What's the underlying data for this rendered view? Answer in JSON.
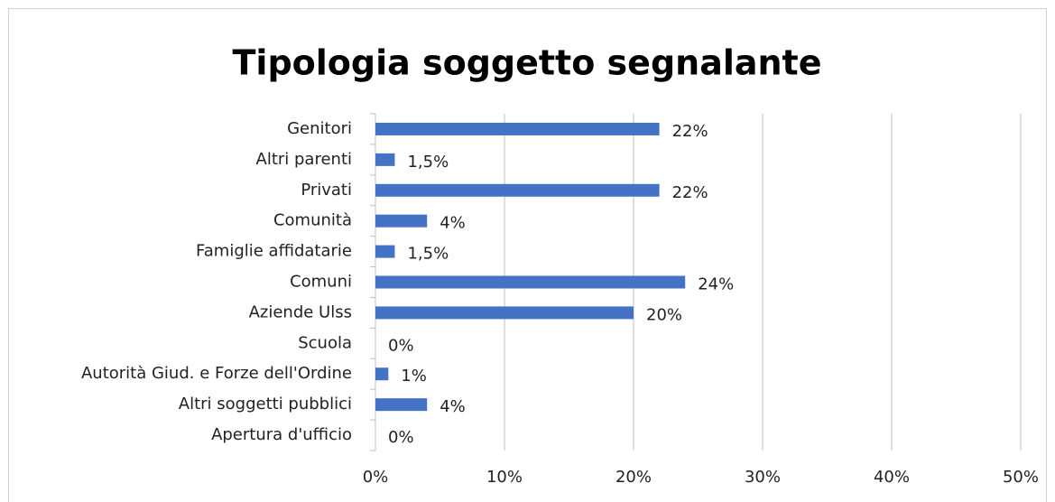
{
  "chart_data": {
    "type": "barh",
    "title": "Tipologia soggetto segnalante",
    "categories": [
      "Genitori",
      "Altri parenti",
      "Privati",
      "Comunità",
      "Famiglie affidatarie",
      "Comuni",
      "Aziende Ulss",
      "Scuola",
      "Autorità Giud. e Forze dell'Ordine",
      "Altri soggetti pubblici",
      "Apertura d'ufficio"
    ],
    "values": [
      22,
      1.5,
      22,
      4,
      1.5,
      24,
      20,
      0,
      1,
      4,
      0
    ],
    "value_labels": [
      "22%",
      "1,5%",
      "22%",
      "4%",
      "1,5%",
      "24%",
      "20%",
      "0%",
      "1%",
      "4%",
      "0%"
    ],
    "color": "#4472c4",
    "xlim": [
      0,
      50
    ],
    "xticks": [
      {
        "value": 0,
        "label": "0%"
      },
      {
        "value": 10,
        "label": "10%"
      },
      {
        "value": 20,
        "label": "20%"
      },
      {
        "value": 30,
        "label": "30%"
      },
      {
        "value": 40,
        "label": "40%"
      },
      {
        "value": 50,
        "label": "50%"
      }
    ],
    "grid": true
  }
}
